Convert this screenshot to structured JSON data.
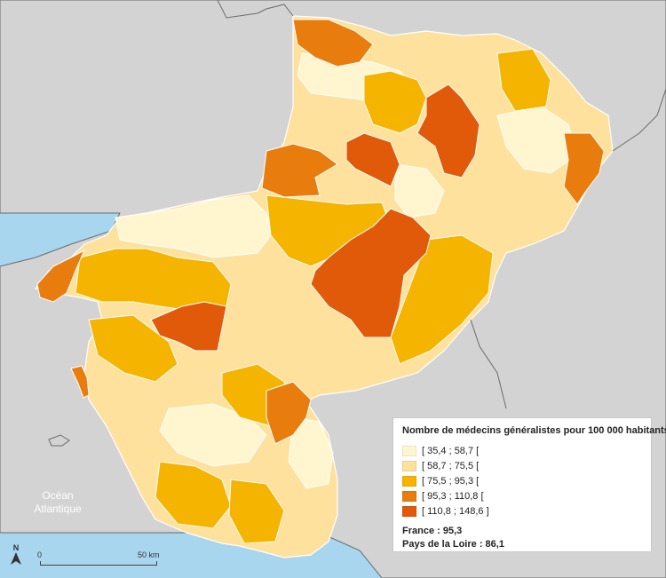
{
  "colors": {
    "sea": "#a8d6ef",
    "outside_land": "#d3d3d3",
    "border_line": "#ffffff",
    "outside_border": "#6b6b6b",
    "class_1": "#fff6cf",
    "class_2": "#fde19c",
    "class_3": "#f5b400",
    "class_4": "#e87d0e",
    "class_5": "#e05a0a"
  },
  "legend": {
    "title": "Nombre de médecins généralistes pour 100 000 habitants",
    "classes": [
      {
        "label": "[ 35,4 ; 58,7 [",
        "color": "#fff6cf"
      },
      {
        "label": "[ 58,7 ; 75,5 [",
        "color": "#fde19c"
      },
      {
        "label": "[ 75,5 ; 95,3 [",
        "color": "#f5b400"
      },
      {
        "label": "[ 95,3 ; 110,8 [",
        "color": "#e87d0e"
      },
      {
        "label": "[ 110,8 ; 148,6 ]",
        "color": "#e05a0a"
      }
    ],
    "france": "France : 95,3",
    "region": "Pays de la Loire : 86,1"
  },
  "ocean_label": {
    "line1": "Océan",
    "line2": "Atlantique"
  },
  "north_arrow": {
    "letter": "N",
    "icon": "north-arrow-icon"
  },
  "scale_bar": {
    "start": "0",
    "end": "50 km"
  }
}
